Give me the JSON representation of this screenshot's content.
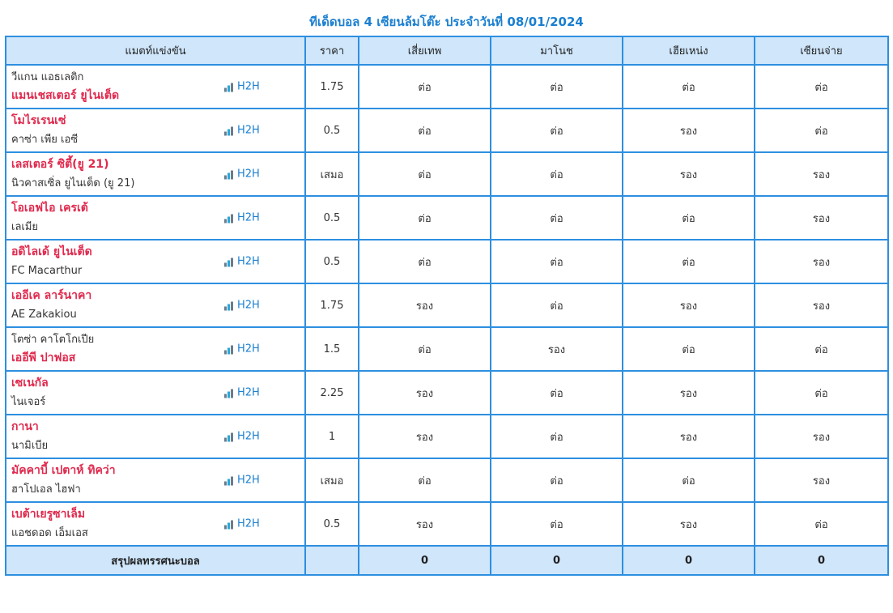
{
  "title": "ทีเด็ดบอล 4 เซียนล้มโต๊ะ ประจำวันที่ 08/01/2024",
  "header": {
    "match": "แมตท์แข่งขัน",
    "price": "ราคา",
    "tipsters": [
      "เสี่ยเทพ",
      "มาโนช",
      "เฮียเหน่ง",
      "เซียนจ่าย"
    ]
  },
  "h2h_label": "H2H",
  "rows": [
    {
      "home": "วีแกน แอธเลติก",
      "away": "แมนเชสเตอร์ ยูไนเต็ด",
      "fav": "away",
      "price": "1.75",
      "picks": [
        "ต่อ",
        "ต่อ",
        "ต่อ",
        "ต่อ"
      ]
    },
    {
      "home": "โมไรเรนเซ่",
      "away": "คาซ่า เพีย เอซี",
      "fav": "home",
      "price": "0.5",
      "picks": [
        "ต่อ",
        "ต่อ",
        "รอง",
        "ต่อ"
      ]
    },
    {
      "home": "เลสเตอร์ ซิตี้(ยู 21)",
      "away": "นิวคาสเซิ่ล ยูไนเต็ด (ยู 21)",
      "fav": "home",
      "price": "เสมอ",
      "picks": [
        "ต่อ",
        "ต่อ",
        "รอง",
        "รอง"
      ]
    },
    {
      "home": "โอเอฟไอ เครเต้",
      "away": "เลเมีย",
      "fav": "home",
      "price": "0.5",
      "picks": [
        "ต่อ",
        "ต่อ",
        "ต่อ",
        "รอง"
      ]
    },
    {
      "home": "อดิไลเด้ ยูไนเต็ด",
      "away": "FC Macarthur",
      "fav": "home",
      "price": "0.5",
      "picks": [
        "ต่อ",
        "ต่อ",
        "ต่อ",
        "รอง"
      ]
    },
    {
      "home": "เออีเค ลาร์นาคา",
      "away": "AE Zakakiou",
      "fav": "home",
      "price": "1.75",
      "picks": [
        "รอง",
        "ต่อ",
        "รอง",
        "รอง"
      ]
    },
    {
      "home": "โตซ่า คาโตโกเปีย",
      "away": "เออีพี ปาฟอส",
      "fav": "away",
      "price": "1.5",
      "picks": [
        "ต่อ",
        "รอง",
        "ต่อ",
        "ต่อ"
      ]
    },
    {
      "home": "เซเนกัล",
      "away": "ไนเจอร์",
      "fav": "home",
      "price": "2.25",
      "picks": [
        "รอง",
        "ต่อ",
        "รอง",
        "ต่อ"
      ]
    },
    {
      "home": "กานา",
      "away": "นามิเบีย",
      "fav": "home",
      "price": "1",
      "picks": [
        "รอง",
        "ต่อ",
        "รอง",
        "รอง"
      ]
    },
    {
      "home": "มัคคาบี้ เปตาห์ ทิคว่า",
      "away": "ฮาโปเอล ไฮฟา",
      "fav": "home",
      "price": "เสมอ",
      "picks": [
        "ต่อ",
        "ต่อ",
        "ต่อ",
        "รอง"
      ]
    },
    {
      "home": "เบต้าเยรูซาเล็ม",
      "away": "แอชดอด เอ็มเอส",
      "fav": "home",
      "price": "0.5",
      "picks": [
        "รอง",
        "ต่อ",
        "รอง",
        "ต่อ"
      ]
    }
  ],
  "summary": {
    "label": "สรุปผลทรรศนะบอล",
    "price": "",
    "scores": [
      "0",
      "0",
      "0",
      "0"
    ]
  },
  "colors": {
    "accent": "#1a7fd0",
    "border": "#2d8fe0",
    "header_bg": "#cfe6fb",
    "favorite": "#e0294d",
    "text": "#333333"
  },
  "icons": {
    "h2h": "bar-chart-icon"
  }
}
